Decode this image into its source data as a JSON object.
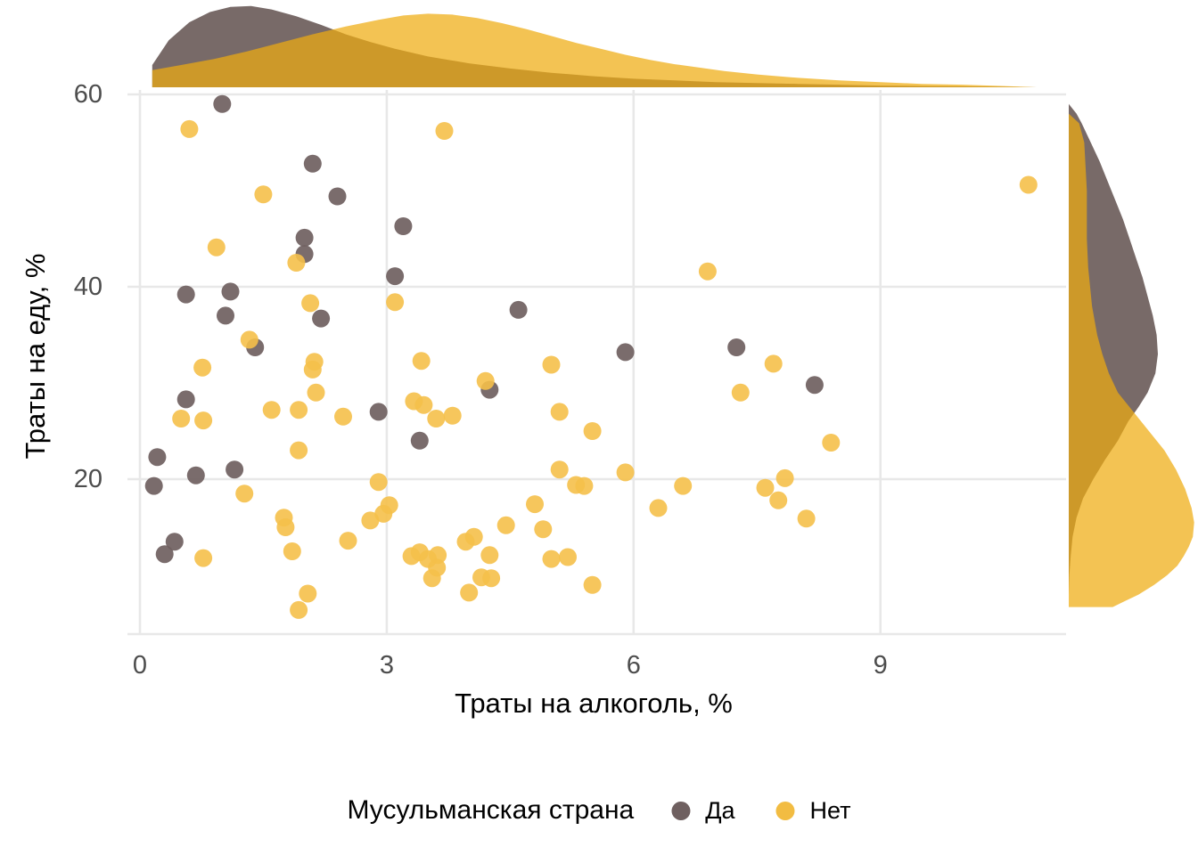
{
  "chart_data": {
    "type": "scatter",
    "title": "",
    "xlabel": "Траты на алкоголь, %",
    "ylabel": "Траты на еду, %",
    "xlim": [
      -0.2,
      11.4
    ],
    "ylim": [
      4.5,
      61
    ],
    "xticks": [
      0,
      3,
      6,
      9
    ],
    "yticks": [
      20,
      40,
      60
    ],
    "grid": true,
    "marginals": "density curves on top (x distribution) and right (y distribution) for both groups",
    "legend": {
      "title": "Мусульманская страна",
      "position": "bottom",
      "entries": [
        {
          "label": "Да",
          "color": "#6F6060"
        },
        {
          "label": "Нет",
          "color": "#F2BC42"
        }
      ]
    },
    "colors": {
      "point_da": "#6F6060",
      "point_net": "#F5C04A",
      "density_da_fill": "#786A68",
      "density_net_fill": "#EFAC10",
      "density_overlap_seen": "#CE9A29",
      "gridline": "#E8E8E8",
      "tick_text": "#4D4D4D"
    },
    "series": [
      {
        "name": "Да",
        "color": "#6F6060",
        "opacity": 0.92,
        "points": [
          [
            0.17,
            19.3
          ],
          [
            0.21,
            22.3
          ],
          [
            0.3,
            12.2
          ],
          [
            0.42,
            13.5
          ],
          [
            0.56,
            28.3
          ],
          [
            0.56,
            39.2
          ],
          [
            0.68,
            20.4
          ],
          [
            1.0,
            59.0
          ],
          [
            1.04,
            37.0
          ],
          [
            1.1,
            39.5
          ],
          [
            1.15,
            21.0
          ],
          [
            1.4,
            33.7
          ],
          [
            2.0,
            45.1
          ],
          [
            2.0,
            43.4
          ],
          [
            2.1,
            52.8
          ],
          [
            2.2,
            36.7
          ],
          [
            2.4,
            49.4
          ],
          [
            2.9,
            27.0
          ],
          [
            3.1,
            41.1
          ],
          [
            3.2,
            46.3
          ],
          [
            3.4,
            24.0
          ],
          [
            4.25,
            29.3
          ],
          [
            4.6,
            37.6
          ],
          [
            5.9,
            33.2
          ],
          [
            7.25,
            33.7
          ],
          [
            8.2,
            29.8
          ]
        ]
      },
      {
        "name": "Нет",
        "color": "#F5C04A",
        "opacity": 0.9,
        "points": [
          [
            0.6,
            56.4
          ],
          [
            0.93,
            44.1
          ],
          [
            1.5,
            49.6
          ],
          [
            1.9,
            42.5
          ],
          [
            3.7,
            56.2
          ],
          [
            10.8,
            50.6
          ],
          [
            6.9,
            41.6
          ],
          [
            3.1,
            38.4
          ],
          [
            2.07,
            38.3
          ],
          [
            1.33,
            34.5
          ],
          [
            0.76,
            31.6
          ],
          [
            2.12,
            32.2
          ],
          [
            2.1,
            31.4
          ],
          [
            3.42,
            32.3
          ],
          [
            5.0,
            31.9
          ],
          [
            7.7,
            32.0
          ],
          [
            7.3,
            29.0
          ],
          [
            2.14,
            29.0
          ],
          [
            3.33,
            28.1
          ],
          [
            3.45,
            27.7
          ],
          [
            3.6,
            26.3
          ],
          [
            3.8,
            26.6
          ],
          [
            0.5,
            26.3
          ],
          [
            0.77,
            26.1
          ],
          [
            1.6,
            27.2
          ],
          [
            1.93,
            27.2
          ],
          [
            2.47,
            26.5
          ],
          [
            4.2,
            30.2
          ],
          [
            5.1,
            27.0
          ],
          [
            5.5,
            25.0
          ],
          [
            1.93,
            23.0
          ],
          [
            5.1,
            21.0
          ],
          [
            5.9,
            20.7
          ],
          [
            6.6,
            19.3
          ],
          [
            7.6,
            19.1
          ],
          [
            7.84,
            20.1
          ],
          [
            8.4,
            23.8
          ],
          [
            7.76,
            17.8
          ],
          [
            8.1,
            15.9
          ],
          [
            2.9,
            19.7
          ],
          [
            1.27,
            18.5
          ],
          [
            3.03,
            17.3
          ],
          [
            2.96,
            16.4
          ],
          [
            2.8,
            15.7
          ],
          [
            1.75,
            16.0
          ],
          [
            1.77,
            15.0
          ],
          [
            6.3,
            17.0
          ],
          [
            5.3,
            19.4
          ],
          [
            5.4,
            19.3
          ],
          [
            4.45,
            15.2
          ],
          [
            4.8,
            17.4
          ],
          [
            4.9,
            14.8
          ],
          [
            4.06,
            14.0
          ],
          [
            3.96,
            13.5
          ],
          [
            4.25,
            12.1
          ],
          [
            3.3,
            12.0
          ],
          [
            3.4,
            12.4
          ],
          [
            3.5,
            11.7
          ],
          [
            3.62,
            12.1
          ],
          [
            3.61,
            10.8
          ],
          [
            3.55,
            9.7
          ],
          [
            1.85,
            12.5
          ],
          [
            0.77,
            11.8
          ],
          [
            2.53,
            13.6
          ],
          [
            5.0,
            11.7
          ],
          [
            5.2,
            11.9
          ],
          [
            4.15,
            9.8
          ],
          [
            4.27,
            9.7
          ],
          [
            4.0,
            8.2
          ],
          [
            5.5,
            9.0
          ],
          [
            2.04,
            8.1
          ],
          [
            1.93,
            6.4
          ]
        ]
      }
    ],
    "density_top": {
      "comment": "x value vs relative height (% of marginal panel)",
      "da": [
        [
          0.15,
          0
        ],
        [
          0.15,
          26
        ],
        [
          0.35,
          55
        ],
        [
          0.6,
          76
        ],
        [
          0.85,
          88
        ],
        [
          1.1,
          94
        ],
        [
          1.35,
          95
        ],
        [
          1.6,
          91
        ],
        [
          1.9,
          83
        ],
        [
          2.2,
          73
        ],
        [
          2.5,
          62
        ],
        [
          2.8,
          53
        ],
        [
          3.1,
          45
        ],
        [
          3.5,
          36
        ],
        [
          4,
          28
        ],
        [
          4.5,
          22
        ],
        [
          5,
          17
        ],
        [
          5.5,
          13
        ],
        [
          6,
          10
        ],
        [
          6.5,
          8
        ],
        [
          7,
          6
        ],
        [
          7.5,
          5
        ],
        [
          8,
          4
        ],
        [
          8.5,
          3
        ],
        [
          9,
          2
        ],
        [
          9.5,
          1.5
        ],
        [
          10,
          1
        ],
        [
          10.5,
          0.5
        ],
        [
          10.9,
          0
        ]
      ],
      "net": [
        [
          0.15,
          0
        ],
        [
          0.15,
          20
        ],
        [
          0.5,
          26
        ],
        [
          0.9,
          33
        ],
        [
          1.3,
          42
        ],
        [
          1.7,
          52
        ],
        [
          2.1,
          62
        ],
        [
          2.5,
          71
        ],
        [
          2.9,
          79
        ],
        [
          3.2,
          84
        ],
        [
          3.5,
          86
        ],
        [
          3.8,
          85
        ],
        [
          4.1,
          81
        ],
        [
          4.4,
          75
        ],
        [
          4.7,
          68
        ],
        [
          5,
          60
        ],
        [
          5.3,
          52
        ],
        [
          5.6,
          45
        ],
        [
          5.9,
          38
        ],
        [
          6.2,
          32
        ],
        [
          6.5,
          27
        ],
        [
          6.8,
          23
        ],
        [
          7.1,
          19
        ],
        [
          7.5,
          15
        ],
        [
          8,
          11
        ],
        [
          8.5,
          8
        ],
        [
          9,
          6
        ],
        [
          9.5,
          4
        ],
        [
          10,
          3
        ],
        [
          10.5,
          1.5
        ],
        [
          10.9,
          0
        ]
      ]
    },
    "density_right": {
      "comment": "y value vs relative width (% of marginal panel)",
      "da": [
        [
          59,
          0
        ],
        [
          58,
          6
        ],
        [
          57,
          10
        ],
        [
          55,
          17
        ],
        [
          53,
          24
        ],
        [
          51,
          30
        ],
        [
          49,
          36
        ],
        [
          47,
          42
        ],
        [
          45,
          47
        ],
        [
          43,
          52
        ],
        [
          41,
          57
        ],
        [
          39,
          61
        ],
        [
          37,
          65
        ],
        [
          35,
          68
        ],
        [
          33,
          69
        ],
        [
          31,
          67
        ],
        [
          29,
          61
        ],
        [
          27.5,
          54
        ],
        [
          26,
          46
        ],
        [
          24,
          38
        ],
        [
          22,
          28
        ],
        [
          20,
          19
        ],
        [
          18,
          11
        ],
        [
          16,
          6
        ],
        [
          14,
          3
        ],
        [
          12,
          1.5
        ],
        [
          10,
          0.5
        ],
        [
          8,
          0
        ]
      ],
      "net": [
        [
          58,
          0
        ],
        [
          57,
          8
        ],
        [
          55,
          12
        ],
        [
          50,
          14
        ],
        [
          45,
          14
        ],
        [
          42,
          15
        ],
        [
          38,
          18
        ],
        [
          35,
          22
        ],
        [
          33,
          26
        ],
        [
          31,
          31
        ],
        [
          29,
          38
        ],
        [
          28,
          44
        ],
        [
          27,
          50
        ],
        [
          25,
          62
        ],
        [
          23,
          74
        ],
        [
          21,
          83
        ],
        [
          19,
          90
        ],
        [
          17,
          95
        ],
        [
          15.5,
          97
        ],
        [
          14,
          96
        ],
        [
          13,
          93
        ],
        [
          12,
          89
        ],
        [
          11,
          84
        ],
        [
          10,
          76
        ],
        [
          9,
          66
        ],
        [
          8,
          54
        ],
        [
          7.3,
          43
        ],
        [
          6.7,
          34
        ],
        [
          6.7,
          0
        ]
      ]
    }
  }
}
